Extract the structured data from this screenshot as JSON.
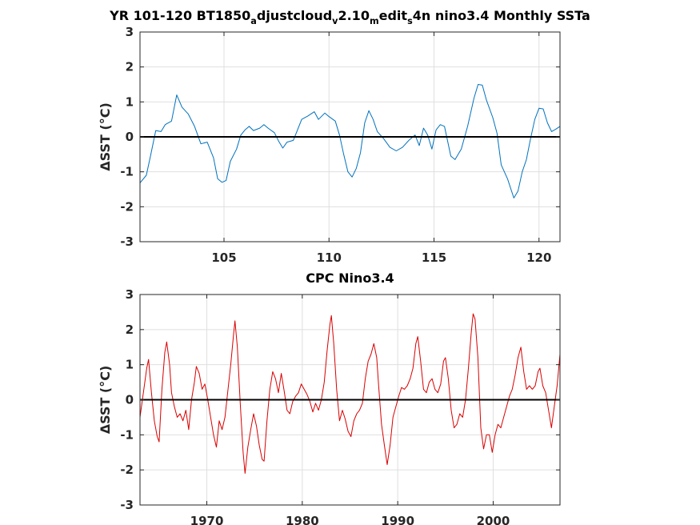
{
  "chart_data": [
    {
      "type": "line",
      "title": "YR 101-120 BT1850_adjustcloud_v2.10_medit_s4n nino3.4 Monthly SSTa",
      "title_parts": [
        {
          "text": "YR 101-120 BT1850",
          "sub": false
        },
        {
          "text": "a",
          "sub": true
        },
        {
          "text": "djustcloud",
          "sub": false
        },
        {
          "text": "v",
          "sub": true
        },
        {
          "text": "2.10",
          "sub": false
        },
        {
          "text": "m",
          "sub": true
        },
        {
          "text": "edit",
          "sub": false
        },
        {
          "text": "s",
          "sub": true
        },
        {
          "text": "4n nino3.4 Monthly SSTa",
          "sub": false
        }
      ],
      "ylabel_prefix": "ΔSST (",
      "ylabel_unit": "°C",
      "ylabel_suffix": ")",
      "xlim": [
        101,
        121
      ],
      "ylim": [
        -3,
        3
      ],
      "xticks": [
        105,
        110,
        115,
        120
      ],
      "yticks": [
        -3,
        -2,
        -1,
        0,
        1,
        2,
        3
      ],
      "grid": true,
      "zero_line": true,
      "series": [
        {
          "color": "#0072BD",
          "points": [
            [
              101.0,
              -1.32
            ],
            [
              101.3,
              -1.1
            ],
            [
              101.5,
              -0.55
            ],
            [
              101.75,
              0.18
            ],
            [
              102.0,
              0.15
            ],
            [
              102.2,
              0.35
            ],
            [
              102.5,
              0.45
            ],
            [
              102.75,
              1.2
            ],
            [
              103.0,
              0.85
            ],
            [
              103.3,
              0.65
            ],
            [
              103.6,
              0.3
            ],
            [
              103.9,
              -0.2
            ],
            [
              104.2,
              -0.15
            ],
            [
              104.5,
              -0.6
            ],
            [
              104.7,
              -1.2
            ],
            [
              104.9,
              -1.3
            ],
            [
              105.1,
              -1.25
            ],
            [
              105.3,
              -0.7
            ],
            [
              105.6,
              -0.35
            ],
            [
              105.8,
              0.05
            ],
            [
              106.0,
              0.2
            ],
            [
              106.2,
              0.3
            ],
            [
              106.4,
              0.18
            ],
            [
              106.7,
              0.25
            ],
            [
              106.9,
              0.35
            ],
            [
              107.1,
              0.25
            ],
            [
              107.4,
              0.12
            ],
            [
              107.6,
              -0.12
            ],
            [
              107.8,
              -0.32
            ],
            [
              108.0,
              -0.15
            ],
            [
              108.3,
              -0.1
            ],
            [
              108.5,
              0.2
            ],
            [
              108.7,
              0.5
            ],
            [
              109.0,
              0.6
            ],
            [
              109.3,
              0.72
            ],
            [
              109.5,
              0.5
            ],
            [
              109.8,
              0.68
            ],
            [
              110.0,
              0.58
            ],
            [
              110.3,
              0.45
            ],
            [
              110.5,
              0.05
            ],
            [
              110.7,
              -0.5
            ],
            [
              110.9,
              -1.0
            ],
            [
              111.1,
              -1.15
            ],
            [
              111.3,
              -0.9
            ],
            [
              111.5,
              -0.45
            ],
            [
              111.7,
              0.4
            ],
            [
              111.9,
              0.75
            ],
            [
              112.1,
              0.5
            ],
            [
              112.3,
              0.15
            ],
            [
              112.6,
              -0.05
            ],
            [
              112.9,
              -0.3
            ],
            [
              113.2,
              -0.4
            ],
            [
              113.5,
              -0.3
            ],
            [
              113.8,
              -0.1
            ],
            [
              114.1,
              0.05
            ],
            [
              114.3,
              -0.25
            ],
            [
              114.5,
              0.25
            ],
            [
              114.7,
              0.05
            ],
            [
              114.9,
              -0.35
            ],
            [
              115.1,
              0.2
            ],
            [
              115.3,
              0.35
            ],
            [
              115.5,
              0.3
            ],
            [
              115.8,
              -0.55
            ],
            [
              116.0,
              -0.65
            ],
            [
              116.3,
              -0.35
            ],
            [
              116.6,
              0.3
            ],
            [
              116.9,
              1.1
            ],
            [
              117.1,
              1.5
            ],
            [
              117.3,
              1.48
            ],
            [
              117.5,
              1.05
            ],
            [
              117.8,
              0.55
            ],
            [
              118.0,
              0.1
            ],
            [
              118.2,
              -0.8
            ],
            [
              118.5,
              -1.2
            ],
            [
              118.8,
              -1.75
            ],
            [
              119.0,
              -1.55
            ],
            [
              119.2,
              -1.0
            ],
            [
              119.4,
              -0.65
            ],
            [
              119.6,
              -0.05
            ],
            [
              119.8,
              0.5
            ],
            [
              120.0,
              0.82
            ],
            [
              120.2,
              0.8
            ],
            [
              120.4,
              0.4
            ],
            [
              120.6,
              0.15
            ],
            [
              120.8,
              0.22
            ],
            [
              121.0,
              0.3
            ]
          ]
        }
      ]
    },
    {
      "type": "line",
      "title": "CPC Nino3.4",
      "ylabel_prefix": "ΔSST (",
      "ylabel_unit": "°C",
      "ylabel_suffix": ")",
      "xlim": [
        1963,
        2007
      ],
      "ylim": [
        -3,
        3
      ],
      "xticks": [
        1970,
        1980,
        1990,
        2000
      ],
      "yticks": [
        -3,
        -2,
        -1,
        0,
        1,
        2,
        3
      ],
      "grid": true,
      "zero_line": true,
      "series": [
        {
          "color": "#D90000",
          "points": [
            [
              1963.0,
              -0.5
            ],
            [
              1963.4,
              0.3
            ],
            [
              1963.7,
              0.9
            ],
            [
              1963.9,
              1.15
            ],
            [
              1964.2,
              0.2
            ],
            [
              1964.5,
              -0.6
            ],
            [
              1964.8,
              -1.05
            ],
            [
              1965.0,
              -1.2
            ],
            [
              1965.3,
              0.3
            ],
            [
              1965.6,
              1.35
            ],
            [
              1965.8,
              1.65
            ],
            [
              1966.1,
              1.0
            ],
            [
              1966.3,
              0.2
            ],
            [
              1966.6,
              -0.2
            ],
            [
              1966.9,
              -0.5
            ],
            [
              1967.2,
              -0.4
            ],
            [
              1967.5,
              -0.6
            ],
            [
              1967.8,
              -0.3
            ],
            [
              1968.1,
              -0.85
            ],
            [
              1968.4,
              0.0
            ],
            [
              1968.7,
              0.5
            ],
            [
              1968.9,
              0.95
            ],
            [
              1969.2,
              0.75
            ],
            [
              1969.5,
              0.3
            ],
            [
              1969.8,
              0.45
            ],
            [
              1970.1,
              0.0
            ],
            [
              1970.4,
              -0.5
            ],
            [
              1970.7,
              -1.0
            ],
            [
              1971.0,
              -1.35
            ],
            [
              1971.3,
              -0.6
            ],
            [
              1971.6,
              -0.85
            ],
            [
              1971.9,
              -0.5
            ],
            [
              1972.2,
              0.25
            ],
            [
              1972.5,
              1.0
            ],
            [
              1972.8,
              1.85
            ],
            [
              1972.95,
              2.25
            ],
            [
              1973.2,
              1.5
            ],
            [
              1973.5,
              -0.1
            ],
            [
              1973.8,
              -1.5
            ],
            [
              1974.0,
              -2.1
            ],
            [
              1974.3,
              -1.35
            ],
            [
              1974.6,
              -0.85
            ],
            [
              1974.9,
              -0.4
            ],
            [
              1975.2,
              -0.75
            ],
            [
              1975.5,
              -1.3
            ],
            [
              1975.8,
              -1.7
            ],
            [
              1976.0,
              -1.75
            ],
            [
              1976.3,
              -0.6
            ],
            [
              1976.6,
              0.3
            ],
            [
              1976.9,
              0.8
            ],
            [
              1977.2,
              0.6
            ],
            [
              1977.5,
              0.2
            ],
            [
              1977.8,
              0.75
            ],
            [
              1978.1,
              0.25
            ],
            [
              1978.4,
              -0.3
            ],
            [
              1978.7,
              -0.4
            ],
            [
              1979.0,
              -0.05
            ],
            [
              1979.3,
              0.1
            ],
            [
              1979.6,
              0.2
            ],
            [
              1979.9,
              0.45
            ],
            [
              1980.2,
              0.3
            ],
            [
              1980.5,
              0.15
            ],
            [
              1980.8,
              -0.05
            ],
            [
              1981.1,
              -0.35
            ],
            [
              1981.4,
              -0.1
            ],
            [
              1981.7,
              -0.3
            ],
            [
              1982.0,
              0.0
            ],
            [
              1982.3,
              0.5
            ],
            [
              1982.6,
              1.4
            ],
            [
              1982.9,
              2.15
            ],
            [
              1983.05,
              2.4
            ],
            [
              1983.3,
              1.6
            ],
            [
              1983.6,
              0.3
            ],
            [
              1983.9,
              -0.6
            ],
            [
              1984.2,
              -0.3
            ],
            [
              1984.5,
              -0.55
            ],
            [
              1984.8,
              -0.9
            ],
            [
              1985.1,
              -1.05
            ],
            [
              1985.4,
              -0.6
            ],
            [
              1985.7,
              -0.4
            ],
            [
              1986.0,
              -0.3
            ],
            [
              1986.3,
              -0.1
            ],
            [
              1986.6,
              0.6
            ],
            [
              1986.9,
              1.1
            ],
            [
              1987.2,
              1.3
            ],
            [
              1987.5,
              1.6
            ],
            [
              1987.8,
              1.2
            ],
            [
              1988.0,
              0.4
            ],
            [
              1988.3,
              -0.7
            ],
            [
              1988.6,
              -1.3
            ],
            [
              1988.9,
              -1.85
            ],
            [
              1989.2,
              -1.3
            ],
            [
              1989.5,
              -0.5
            ],
            [
              1989.8,
              -0.2
            ],
            [
              1990.1,
              0.1
            ],
            [
              1990.4,
              0.35
            ],
            [
              1990.7,
              0.3
            ],
            [
              1991.0,
              0.4
            ],
            [
              1991.3,
              0.6
            ],
            [
              1991.6,
              0.9
            ],
            [
              1991.9,
              1.6
            ],
            [
              1992.1,
              1.8
            ],
            [
              1992.4,
              1.1
            ],
            [
              1992.7,
              0.3
            ],
            [
              1993.0,
              0.2
            ],
            [
              1993.3,
              0.5
            ],
            [
              1993.6,
              0.6
            ],
            [
              1993.9,
              0.3
            ],
            [
              1994.2,
              0.2
            ],
            [
              1994.5,
              0.45
            ],
            [
              1994.8,
              1.1
            ],
            [
              1995.0,
              1.2
            ],
            [
              1995.3,
              0.6
            ],
            [
              1995.6,
              -0.3
            ],
            [
              1995.9,
              -0.8
            ],
            [
              1996.2,
              -0.7
            ],
            [
              1996.5,
              -0.4
            ],
            [
              1996.8,
              -0.5
            ],
            [
              1997.1,
              0.0
            ],
            [
              1997.4,
              0.9
            ],
            [
              1997.7,
              1.9
            ],
            [
              1997.9,
              2.45
            ],
            [
              1998.1,
              2.3
            ],
            [
              1998.4,
              1.2
            ],
            [
              1998.7,
              -0.8
            ],
            [
              1999.0,
              -1.4
            ],
            [
              1999.3,
              -1.0
            ],
            [
              1999.6,
              -1.0
            ],
            [
              1999.9,
              -1.5
            ],
            [
              2000.2,
              -1.0
            ],
            [
              2000.5,
              -0.7
            ],
            [
              2000.8,
              -0.8
            ],
            [
              2001.1,
              -0.5
            ],
            [
              2001.4,
              -0.2
            ],
            [
              2001.7,
              0.1
            ],
            [
              2002.0,
              0.3
            ],
            [
              2002.3,
              0.7
            ],
            [
              2002.6,
              1.2
            ],
            [
              2002.9,
              1.5
            ],
            [
              2003.2,
              0.8
            ],
            [
              2003.5,
              0.3
            ],
            [
              2003.8,
              0.4
            ],
            [
              2004.1,
              0.3
            ],
            [
              2004.4,
              0.4
            ],
            [
              2004.7,
              0.8
            ],
            [
              2004.9,
              0.9
            ],
            [
              2005.2,
              0.4
            ],
            [
              2005.5,
              0.2
            ],
            [
              2005.8,
              -0.3
            ],
            [
              2006.1,
              -0.8
            ],
            [
              2006.4,
              -0.2
            ],
            [
              2006.7,
              0.4
            ],
            [
              2006.9,
              1.0
            ],
            [
              2007.0,
              1.3
            ]
          ]
        }
      ]
    }
  ],
  "colors": {
    "axes": "#262626",
    "grid": "#DFDFDF",
    "zero_line": "#000000"
  }
}
